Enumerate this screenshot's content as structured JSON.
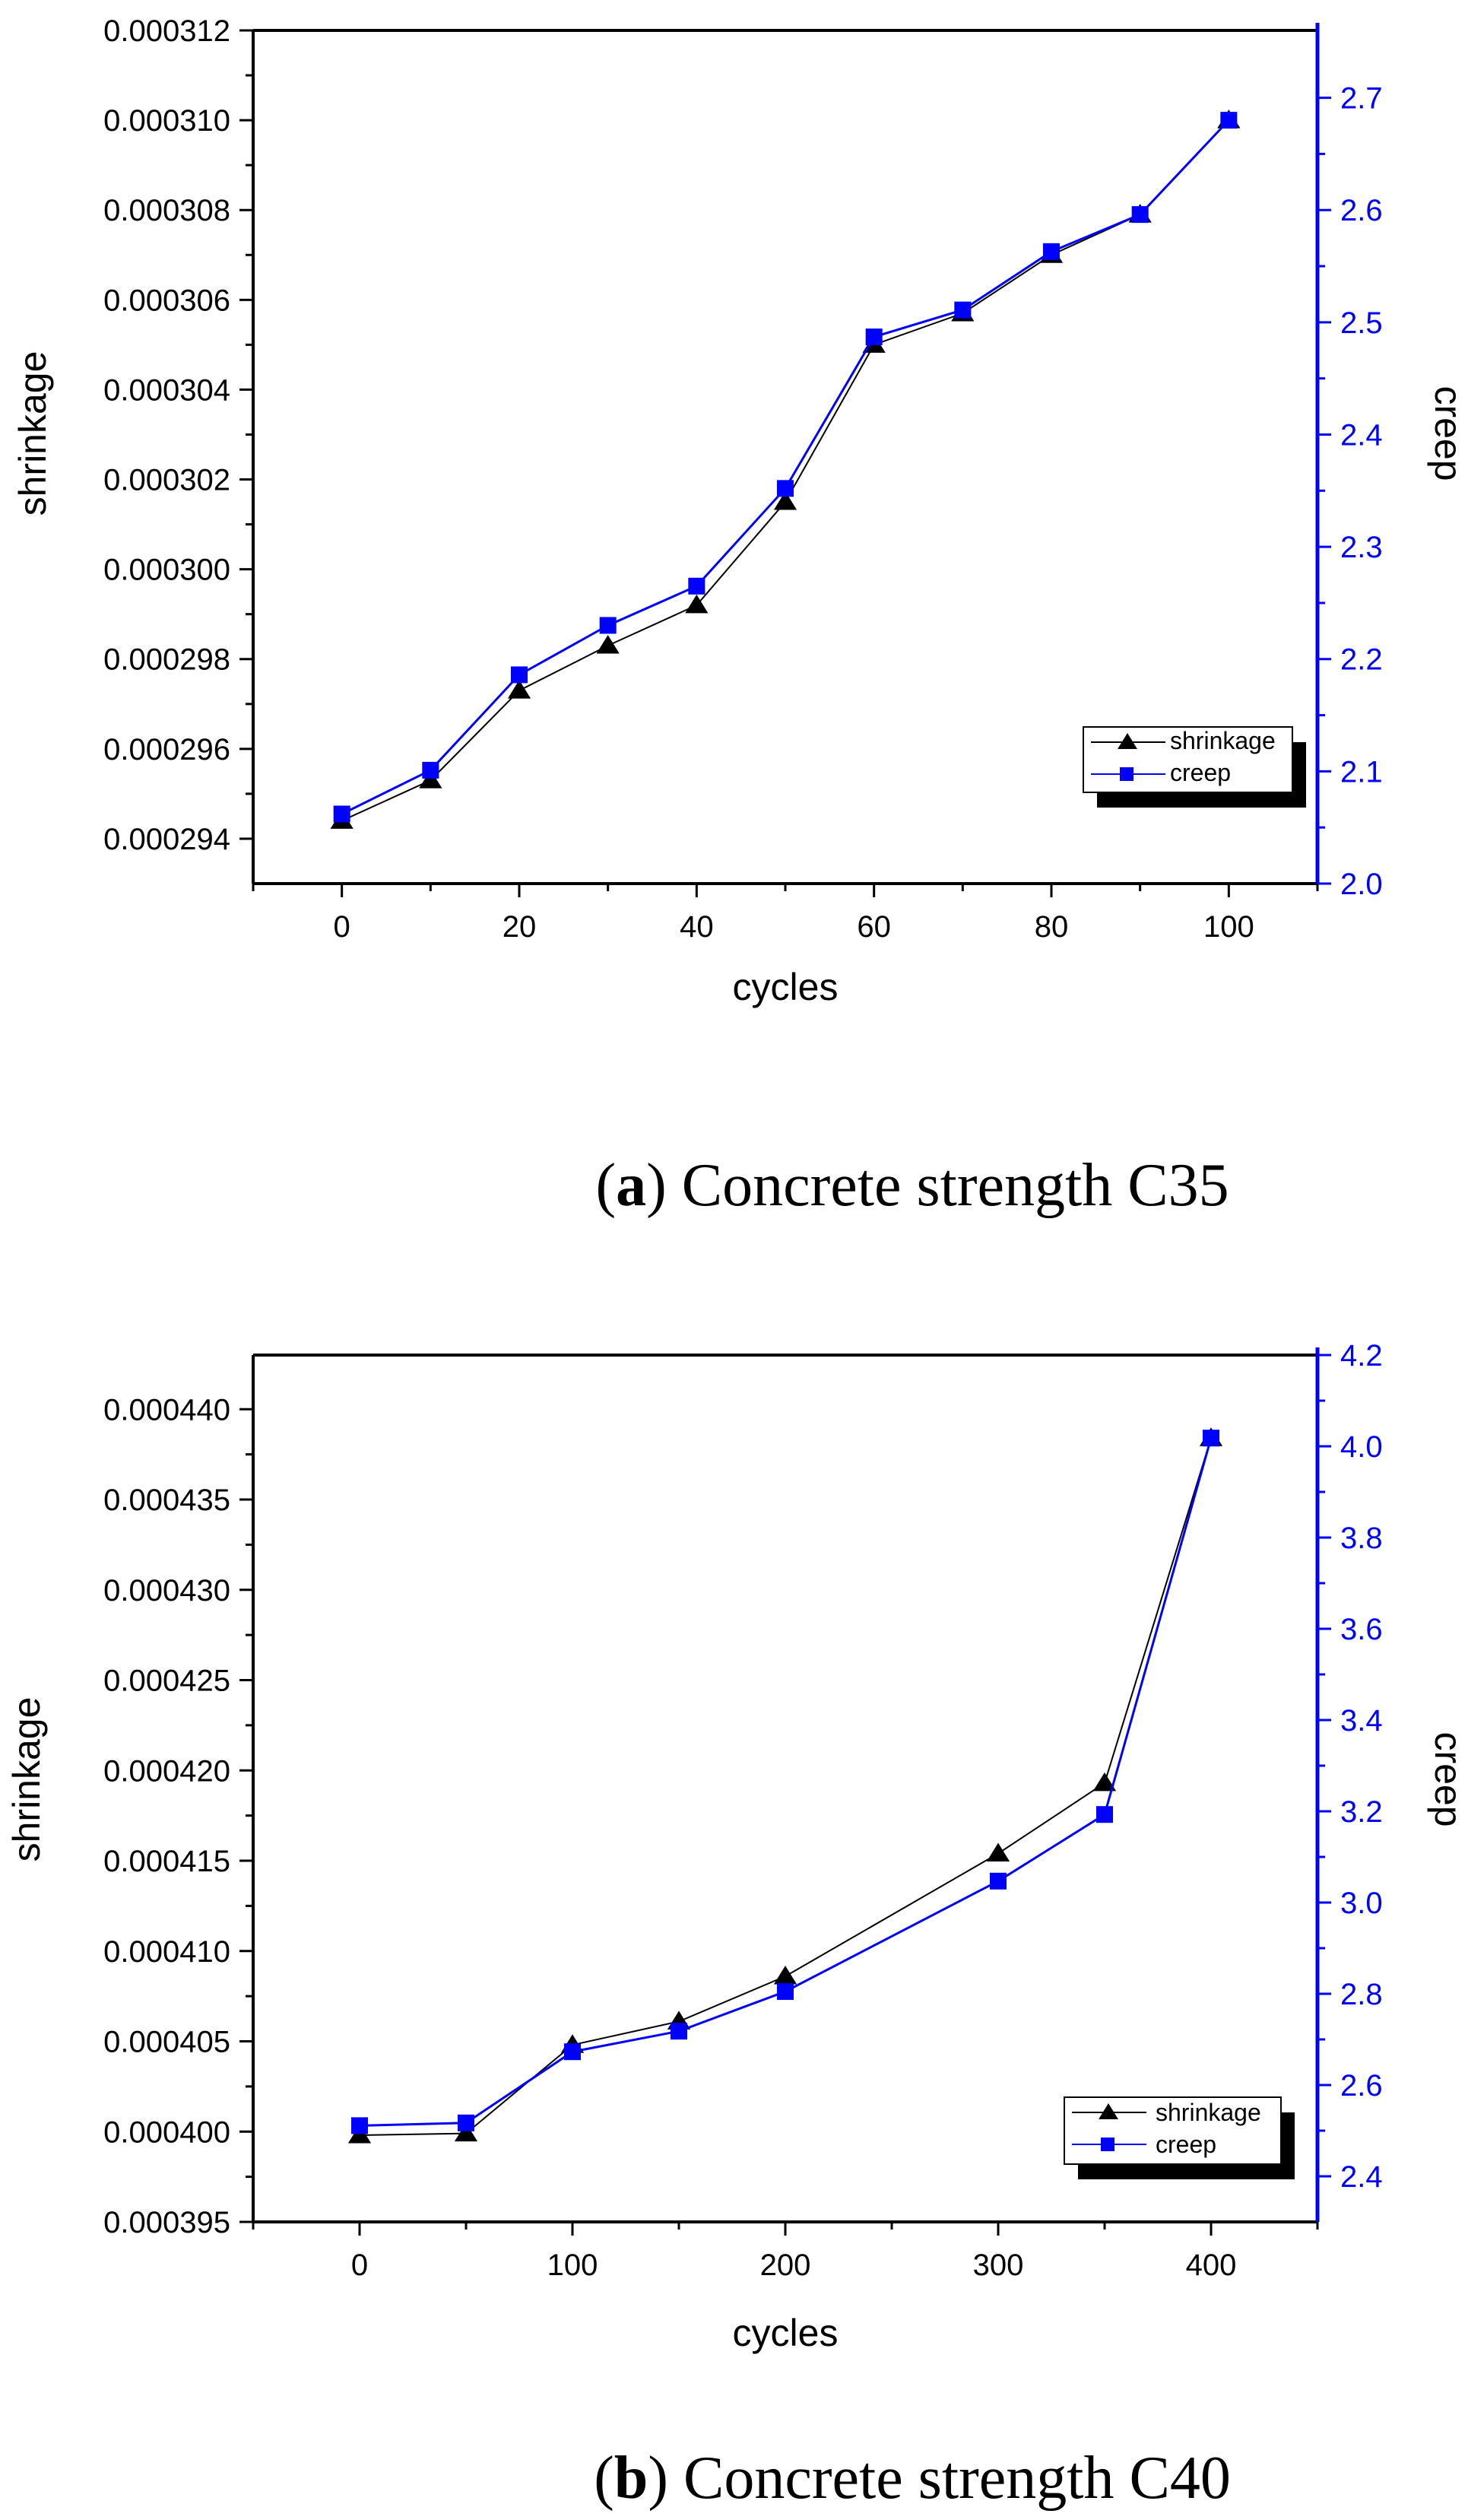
{
  "chart_data": [
    {
      "id": "a",
      "type": "line",
      "caption_letter": "a",
      "caption_text": " Concrete strength C35",
      "xlabel": "cycles",
      "ylabel_left": "shrinkage",
      "ylabel_right": "creep",
      "xlim": [
        -10,
        110
      ],
      "xticks": [
        0,
        20,
        40,
        60,
        80,
        100
      ],
      "ylim_left": [
        0.000293,
        0.000312
      ],
      "yticks_left": [
        "0.000294",
        "0.000296",
        "0.000298",
        "0.000300",
        "0.000302",
        "0.000304",
        "0.000306",
        "0.000308",
        "0.000310",
        "0.000312"
      ],
      "ylim_right": [
        2.0,
        2.76
      ],
      "yticks_right": [
        "2.0",
        "2.1",
        "2.2",
        "2.3",
        "2.4",
        "2.5",
        "2.6",
        "2.7"
      ],
      "x": [
        0,
        10,
        20,
        30,
        40,
        50,
        60,
        70,
        80,
        90,
        100
      ],
      "series": [
        {
          "name": "shrinkage",
          "axis": "left",
          "color": "#000000",
          "marker": "triangle",
          "values": [
            0.0002944,
            0.0002953,
            0.0002973,
            0.0002983,
            0.0002992,
            0.0003015,
            0.000305,
            0.0003057,
            0.000307,
            0.0003079,
            0.00031
          ]
        },
        {
          "name": "creep",
          "axis": "right",
          "color": "#0000ff",
          "marker": "square",
          "values": [
            2.062,
            2.101,
            2.186,
            2.23,
            2.265,
            2.352,
            2.487,
            2.511,
            2.563,
            2.596,
            2.68
          ]
        }
      ],
      "legend": [
        "shrinkage",
        "creep"
      ],
      "legend_position": "bottom-right"
    },
    {
      "id": "b",
      "type": "line",
      "caption_letter": "b",
      "caption_text": " Concrete strength C40",
      "xlabel": "cycles",
      "ylabel_left": "shrinkage",
      "ylabel_right": "creep",
      "xlim": [
        -50,
        450
      ],
      "xticks": [
        0,
        100,
        200,
        300,
        400
      ],
      "ylim_left": [
        0.000395,
        0.000443
      ],
      "yticks_left": [
        "0.000395",
        "0.000400",
        "0.000405",
        "0.000410",
        "0.000415",
        "0.000420",
        "0.000425",
        "0.000430",
        "0.000435",
        "0.000440"
      ],
      "ylim_right": [
        2.3,
        4.2
      ],
      "yticks_right": [
        "2.4",
        "2.6",
        "2.8",
        "3.0",
        "3.2",
        "3.4",
        "3.6",
        "3.8",
        "4.0",
        "4.2"
      ],
      "x": [
        0,
        50,
        100,
        150,
        200,
        300,
        350,
        400
      ],
      "series": [
        {
          "name": "shrinkage",
          "axis": "left",
          "color": "#000000",
          "marker": "triangle",
          "values": [
            0.0003998,
            0.0003999,
            0.0004048,
            0.0004061,
            0.0004086,
            0.0004154,
            0.0004193,
            0.0004384
          ]
        },
        {
          "name": "creep",
          "axis": "right",
          "color": "#0000ff",
          "marker": "square",
          "values": [
            2.511,
            2.517,
            2.673,
            2.718,
            2.805,
            3.047,
            3.193,
            4.018
          ]
        }
      ],
      "legend": [
        "shrinkage",
        "creep"
      ],
      "legend_position": "bottom-right"
    }
  ]
}
